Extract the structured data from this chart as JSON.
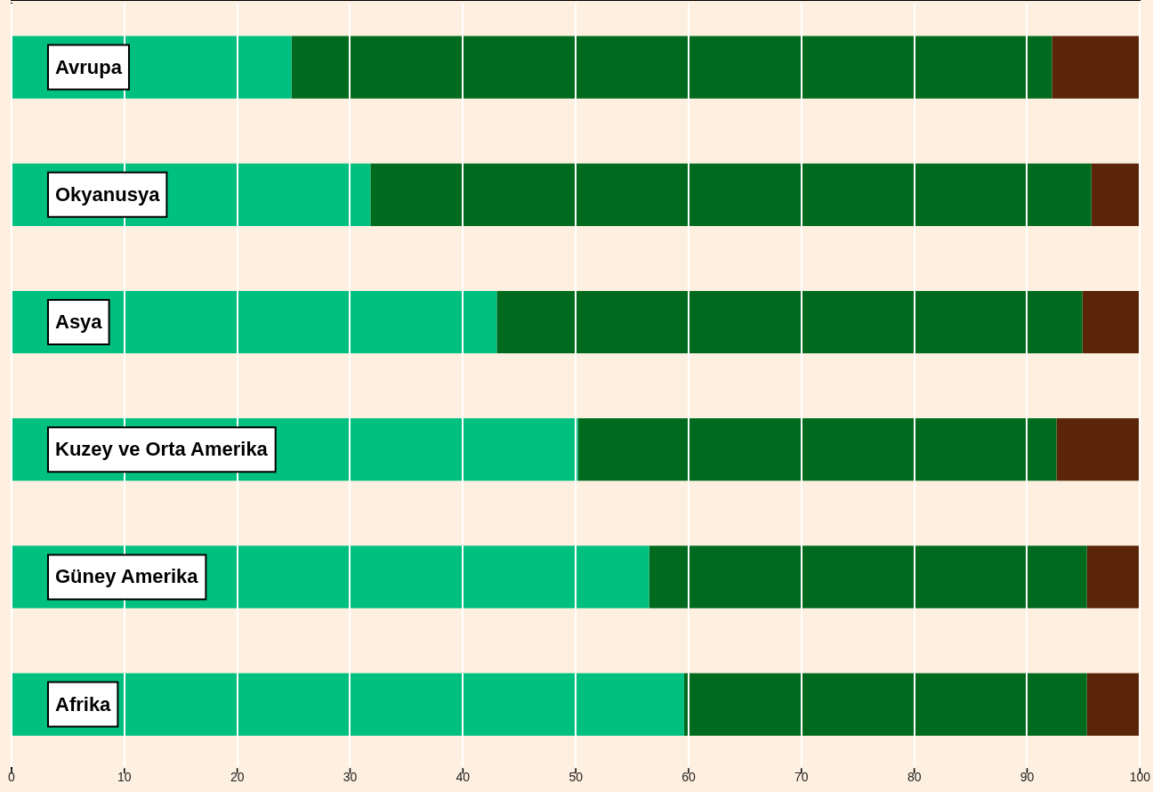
{
  "chart_data": {
    "type": "bar",
    "orientation": "horizontal",
    "stacked": true,
    "categories": [
      "Avrupa",
      "Okyanusya",
      "Asya",
      "Kuzey ve Orta Amerika",
      "Güney Amerika",
      "Afrika"
    ],
    "series": [
      {
        "color": "#00c080",
        "values": [
          24.8,
          31.8,
          43.0,
          50.2,
          56.5,
          59.6
        ]
      },
      {
        "color": "#006b1e",
        "values": [
          67.4,
          63.9,
          51.9,
          42.4,
          38.8,
          35.7
        ]
      },
      {
        "color": "#5a2508",
        "values": [
          7.8,
          4.3,
          5.1,
          7.4,
          4.7,
          4.7
        ]
      }
    ],
    "xlim": [
      0,
      100
    ],
    "xticks": [
      0,
      10,
      20,
      30,
      40,
      50,
      60,
      70,
      80,
      90,
      100
    ],
    "grid": "x",
    "legend": false
  }
}
